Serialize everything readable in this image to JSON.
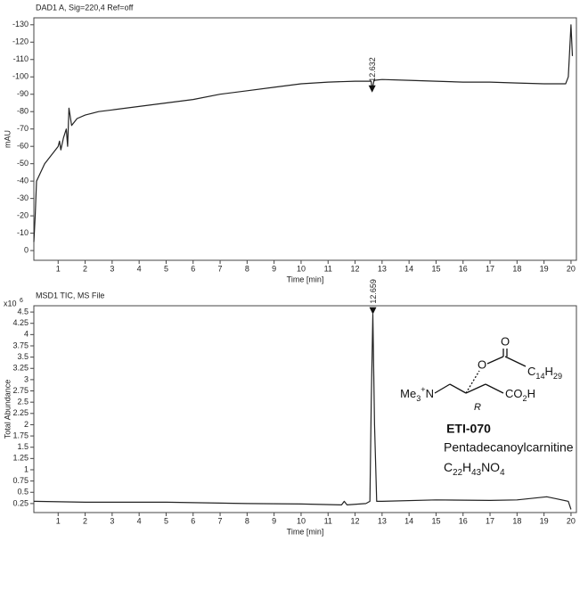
{
  "chart_data": [
    {
      "type": "line",
      "title": "DAD1 A, Sig=220,4 Ref=off",
      "y_label": "mAU",
      "x_label": "Time [min]",
      "xlim": [
        0.1,
        20.2
      ],
      "ylim": [
        5.6,
        -134
      ],
      "xticks": [
        1,
        2,
        3,
        4,
        5,
        6,
        7,
        8,
        9,
        10,
        11,
        12,
        13,
        14,
        15,
        16,
        17,
        18,
        19,
        20
      ],
      "yticks": [
        0,
        -10,
        -20,
        -30,
        -40,
        -50,
        -60,
        -70,
        -80,
        -90,
        -100,
        -110,
        -120,
        -130
      ],
      "color": "#222",
      "x": [
        0.1,
        0.15,
        0.2,
        0.5,
        1.0,
        1.05,
        1.1,
        1.2,
        1.3,
        1.35,
        1.4,
        1.5,
        1.7,
        2,
        2.5,
        3,
        4,
        5,
        6,
        7,
        8,
        9,
        10,
        11,
        12,
        12.6,
        12.63,
        12.7,
        13,
        14,
        15,
        16,
        17,
        18,
        19,
        19.8,
        19.9,
        20,
        20.05
      ],
      "values": [
        -5,
        -20,
        -40,
        -50,
        -60,
        -63,
        -58,
        -65,
        -70,
        -60,
        -82,
        -72,
        -76,
        -78,
        -80,
        -81,
        -83,
        -85,
        -87,
        -90,
        -92,
        -94,
        -96,
        -97,
        -97.5,
        -97.5,
        -92,
        -98,
        -98.5,
        -98,
        -97.5,
        -97,
        -97,
        -96.5,
        -96,
        -96,
        -100,
        -130,
        -112
      ],
      "annotations": [
        {
          "label": "12.632",
          "x": 12.632,
          "y": -91
        }
      ]
    },
    {
      "type": "line",
      "title": "MSD1 TIC, MS File",
      "y_label": "Total Abundance",
      "x_label": "Time [min]",
      "y_multiplier": {
        "base": "x10",
        "exponent": "6"
      },
      "xlim": [
        0.1,
        20.2
      ],
      "ylim": [
        0.05,
        4.64
      ],
      "xticks": [
        1,
        2,
        3,
        4,
        5,
        6,
        7,
        8,
        9,
        10,
        11,
        12,
        13,
        14,
        15,
        16,
        17,
        18,
        19,
        20
      ],
      "yticks": [
        0.25,
        0.5,
        0.75,
        1,
        1.25,
        1.5,
        1.75,
        2,
        2.25,
        2.5,
        2.75,
        3,
        3.25,
        3.5,
        3.75,
        4,
        4.25,
        4.5
      ],
      "color": "#222",
      "x": [
        0.1,
        2,
        5,
        8,
        10,
        11.5,
        11.6,
        11.7,
        12.4,
        12.55,
        12.6,
        12.66,
        12.72,
        12.8,
        13,
        15,
        17,
        18,
        19.1,
        19.5,
        19.9,
        20
      ],
      "values": [
        0.3,
        0.28,
        0.28,
        0.25,
        0.24,
        0.22,
        0.3,
        0.22,
        0.25,
        0.3,
        2.5,
        4.45,
        2.0,
        0.3,
        0.3,
        0.33,
        0.32,
        0.33,
        0.4,
        0.35,
        0.3,
        0.12
      ],
      "annotations": [
        {
          "label": "12.659",
          "x": 12.659,
          "y": 4.45
        }
      ],
      "structure": {
        "carbonyl_o": "O",
        "ester_o": "O",
        "chain": "C14H29",
        "amine": "Me3+N",
        "stereo": "R",
        "acid": "CO2H",
        "code": "ETI-070",
        "name": "Pentadecanoylcarnitine",
        "formula": "C22H43NO4"
      }
    }
  ]
}
